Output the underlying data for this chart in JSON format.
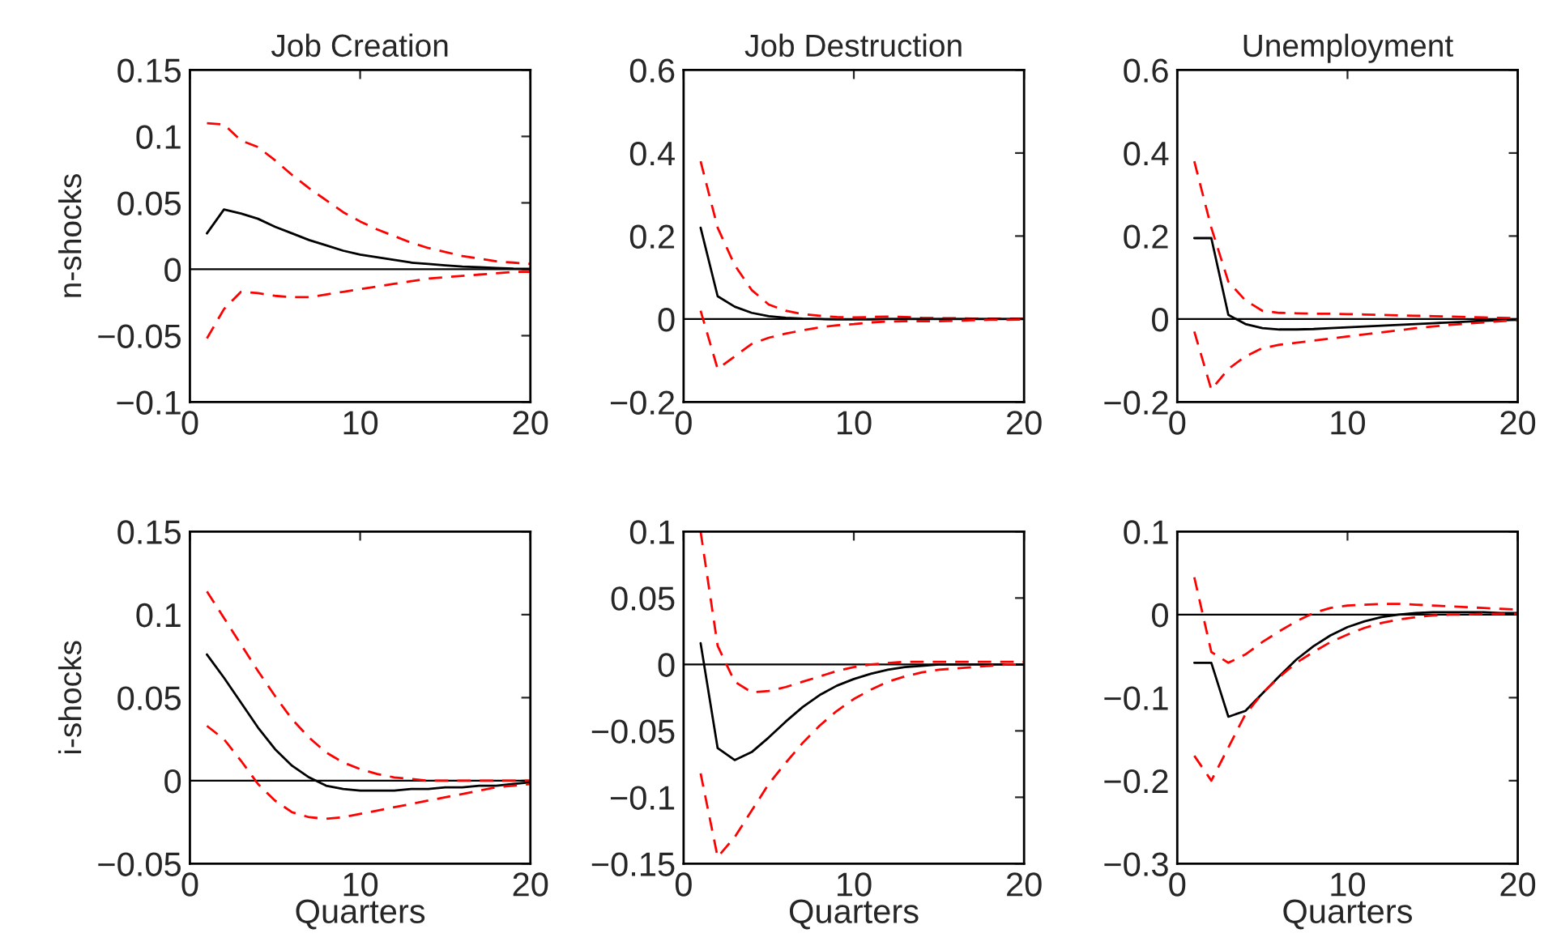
{
  "chart_data": [
    {
      "type": "line",
      "title": "Job Creation",
      "ylabel": "n-shocks",
      "x": [
        1,
        2,
        3,
        4,
        5,
        6,
        7,
        8,
        9,
        10,
        11,
        12,
        13,
        14,
        15,
        16,
        17,
        18,
        19,
        20
      ],
      "xlim": [
        0,
        20
      ],
      "xticks": [
        0,
        10,
        20
      ],
      "ylim": [
        -0.1,
        0.15
      ],
      "yticks": [
        -0.1,
        -0.05,
        0,
        0.05,
        0.1,
        0.15
      ],
      "grid": false,
      "legend": false,
      "ref_lines": [
        {
          "axis": "y",
          "value": 0,
          "color": "#000000"
        }
      ],
      "series": [
        {
          "color": "#ff0000",
          "line_style": "dashed",
          "values": [
            0.11,
            0.109,
            0.097,
            0.092,
            0.082,
            0.071,
            0.061,
            0.052,
            0.043,
            0.036,
            0.03,
            0.025,
            0.02,
            0.016,
            0.013,
            0.01,
            0.008,
            0.006,
            0.005,
            0.004
          ]
        },
        {
          "color": "#000000",
          "line_style": "solid",
          "values": [
            0.027,
            0.045,
            0.042,
            0.038,
            0.032,
            0.027,
            0.022,
            0.018,
            0.014,
            0.011,
            0.009,
            0.007,
            0.005,
            0.004,
            0.003,
            0.002,
            0.0015,
            0.001,
            0.0005,
            0.0003
          ]
        },
        {
          "color": "#ff0000",
          "line_style": "dashed",
          "values": [
            -0.052,
            -0.03,
            -0.017,
            -0.018,
            -0.02,
            -0.021,
            -0.021,
            -0.019,
            -0.017,
            -0.015,
            -0.013,
            -0.011,
            -0.009,
            -0.007,
            -0.006,
            -0.005,
            -0.004,
            -0.003,
            -0.002,
            -0.002
          ]
        }
      ]
    },
    {
      "type": "line",
      "title": "Job Destruction",
      "x": [
        1,
        2,
        3,
        4,
        5,
        6,
        7,
        8,
        9,
        10,
        11,
        12,
        13,
        14,
        15,
        16,
        17,
        18,
        19,
        20
      ],
      "xlim": [
        0,
        20
      ],
      "xticks": [
        0,
        10,
        20
      ],
      "ylim": [
        -0.2,
        0.6
      ],
      "yticks": [
        -0.2,
        0,
        0.2,
        0.4,
        0.6
      ],
      "grid": false,
      "legend": false,
      "ref_lines": [
        {
          "axis": "y",
          "value": 0,
          "color": "#000000"
        }
      ],
      "series": [
        {
          "color": "#ff0000",
          "line_style": "dashed",
          "values": [
            0.38,
            0.22,
            0.13,
            0.07,
            0.035,
            0.02,
            0.012,
            0.008,
            0.005,
            0.004,
            0.005,
            0.006,
            0.005,
            0.003,
            0.002,
            0.002,
            0.001,
            0.001,
            0.001,
            0.001
          ]
        },
        {
          "color": "#000000",
          "line_style": "solid",
          "values": [
            0.22,
            0.055,
            0.03,
            0.015,
            0.007,
            0.003,
            0.001,
            0,
            -0.001,
            -0.001,
            -0.001,
            0,
            0,
            0,
            0,
            0,
            0,
            0,
            0,
            0
          ]
        },
        {
          "color": "#ff0000",
          "line_style": "dashed",
          "values": [
            0.02,
            -0.12,
            -0.09,
            -0.06,
            -0.045,
            -0.035,
            -0.027,
            -0.02,
            -0.015,
            -0.012,
            -0.008,
            -0.006,
            -0.005,
            -0.005,
            -0.005,
            -0.004,
            -0.003,
            -0.002,
            -0.002,
            -0.001
          ]
        }
      ]
    },
    {
      "type": "line",
      "title": "Unemployment",
      "x": [
        1,
        2,
        3,
        4,
        5,
        6,
        7,
        8,
        9,
        10,
        11,
        12,
        13,
        14,
        15,
        16,
        17,
        18,
        19,
        20
      ],
      "xlim": [
        0,
        20
      ],
      "xticks": [
        0,
        10,
        20
      ],
      "ylim": [
        -0.2,
        0.6
      ],
      "yticks": [
        -0.2,
        0,
        0.2,
        0.4,
        0.6
      ],
      "grid": false,
      "legend": false,
      "ref_lines": [
        {
          "axis": "y",
          "value": 0,
          "color": "#000000"
        }
      ],
      "series": [
        {
          "color": "#ff0000",
          "line_style": "dashed",
          "values": [
            0.38,
            0.22,
            0.09,
            0.045,
            0.02,
            0.015,
            0.014,
            0.013,
            0.013,
            0.012,
            0.011,
            0.01,
            0.009,
            0.008,
            0.007,
            0.006,
            0.005,
            0.004,
            0.003,
            0.002
          ]
        },
        {
          "color": "#000000",
          "line_style": "solid",
          "values": [
            0.195,
            0.195,
            0.01,
            -0.012,
            -0.022,
            -0.025,
            -0.025,
            -0.024,
            -0.022,
            -0.02,
            -0.018,
            -0.016,
            -0.014,
            -0.012,
            -0.01,
            -0.008,
            -0.006,
            -0.004,
            -0.003,
            -0.002
          ]
        },
        {
          "color": "#ff0000",
          "line_style": "dashed",
          "values": [
            -0.03,
            -0.17,
            -0.12,
            -0.09,
            -0.07,
            -0.062,
            -0.057,
            -0.052,
            -0.047,
            -0.042,
            -0.037,
            -0.032,
            -0.027,
            -0.022,
            -0.018,
            -0.014,
            -0.011,
            -0.008,
            -0.005,
            -0.003
          ]
        }
      ]
    },
    {
      "type": "line",
      "ylabel": "i-shocks",
      "xlabel": "Quarters",
      "x": [
        1,
        2,
        3,
        4,
        5,
        6,
        7,
        8,
        9,
        10,
        11,
        12,
        13,
        14,
        15,
        16,
        17,
        18,
        19,
        20
      ],
      "xlim": [
        0,
        20
      ],
      "xticks": [
        0,
        10,
        20
      ],
      "ylim": [
        -0.05,
        0.15
      ],
      "yticks": [
        -0.05,
        0,
        0.05,
        0.1,
        0.15
      ],
      "grid": false,
      "legend": false,
      "ref_lines": [
        {
          "axis": "y",
          "value": 0,
          "color": "#000000"
        }
      ],
      "series": [
        {
          "color": "#ff0000",
          "line_style": "dashed",
          "values": [
            0.114,
            0.098,
            0.082,
            0.066,
            0.051,
            0.037,
            0.026,
            0.017,
            0.011,
            0.007,
            0.004,
            0.002,
            0.001,
            0,
            0,
            0,
            0,
            0,
            0,
            0
          ]
        },
        {
          "color": "#000000",
          "line_style": "solid",
          "values": [
            0.076,
            0.062,
            0.047,
            0.032,
            0.019,
            0.009,
            0.002,
            -0.003,
            -0.005,
            -0.006,
            -0.006,
            -0.006,
            -0.005,
            -0.005,
            -0.004,
            -0.004,
            -0.003,
            -0.003,
            -0.002,
            -0.001
          ]
        },
        {
          "color": "#ff0000",
          "line_style": "dashed",
          "values": [
            0.033,
            0.025,
            0.012,
            -0.002,
            -0.012,
            -0.019,
            -0.022,
            -0.023,
            -0.022,
            -0.02,
            -0.018,
            -0.016,
            -0.014,
            -0.012,
            -0.01,
            -0.008,
            -0.006,
            -0.004,
            -0.003,
            -0.002
          ]
        }
      ]
    },
    {
      "type": "line",
      "xlabel": "Quarters",
      "x": [
        1,
        2,
        3,
        4,
        5,
        6,
        7,
        8,
        9,
        10,
        11,
        12,
        13,
        14,
        15,
        16,
        17,
        18,
        19,
        20
      ],
      "xlim": [
        0,
        20
      ],
      "xticks": [
        0,
        10,
        20
      ],
      "ylim": [
        -0.15,
        0.1
      ],
      "yticks": [
        -0.15,
        -0.1,
        -0.05,
        0,
        0.05,
        0.1
      ],
      "grid": false,
      "legend": false,
      "ref_lines": [
        {
          "axis": "y",
          "value": 0,
          "color": "#000000"
        }
      ],
      "series": [
        {
          "color": "#ff0000",
          "line_style": "dashed",
          "values": [
            0.1,
            0.014,
            -0.013,
            -0.021,
            -0.02,
            -0.017,
            -0.013,
            -0.009,
            -0.005,
            -0.002,
            0,
            0.001,
            0.002,
            0.002,
            0.002,
            0.002,
            0.002,
            0.002,
            0.002,
            0.002
          ]
        },
        {
          "color": "#000000",
          "line_style": "solid",
          "values": [
            0.016,
            -0.063,
            -0.072,
            -0.066,
            -0.055,
            -0.043,
            -0.032,
            -0.023,
            -0.016,
            -0.011,
            -0.007,
            -0.004,
            -0.002,
            -0.001,
            0,
            0,
            0,
            0,
            0,
            0
          ]
        },
        {
          "color": "#ff0000",
          "line_style": "dashed",
          "values": [
            -0.082,
            -0.145,
            -0.13,
            -0.11,
            -0.09,
            -0.074,
            -0.059,
            -0.046,
            -0.035,
            -0.026,
            -0.019,
            -0.013,
            -0.009,
            -0.006,
            -0.004,
            -0.003,
            -0.002,
            -0.001,
            0,
            0
          ]
        }
      ]
    },
    {
      "type": "line",
      "xlabel": "Quarters",
      "x": [
        1,
        2,
        3,
        4,
        5,
        6,
        7,
        8,
        9,
        10,
        11,
        12,
        13,
        14,
        15,
        16,
        17,
        18,
        19,
        20
      ],
      "xlim": [
        0,
        20
      ],
      "xticks": [
        0,
        10,
        20
      ],
      "ylim": [
        -0.3,
        0.1
      ],
      "yticks": [
        -0.3,
        -0.2,
        -0.1,
        0,
        0.1
      ],
      "grid": false,
      "legend": false,
      "ref_lines": [
        {
          "axis": "y",
          "value": 0,
          "color": "#000000"
        }
      ],
      "series": [
        {
          "color": "#ff0000",
          "line_style": "dashed",
          "values": [
            0.045,
            -0.045,
            -0.058,
            -0.048,
            -0.033,
            -0.02,
            -0.008,
            0.002,
            0.008,
            0.011,
            0.012,
            0.013,
            0.013,
            0.012,
            0.011,
            0.01,
            0.009,
            0.008,
            0.007,
            0.006
          ]
        },
        {
          "color": "#000000",
          "line_style": "solid",
          "values": [
            -0.058,
            -0.058,
            -0.123,
            -0.116,
            -0.095,
            -0.074,
            -0.054,
            -0.038,
            -0.025,
            -0.015,
            -0.008,
            -0.003,
            0,
            0.002,
            0.003,
            0.003,
            0.003,
            0.003,
            0.002,
            0.002
          ]
        },
        {
          "color": "#ff0000",
          "line_style": "dashed",
          "values": [
            -0.17,
            -0.2,
            -0.16,
            -0.12,
            -0.095,
            -0.075,
            -0.058,
            -0.045,
            -0.033,
            -0.024,
            -0.016,
            -0.01,
            -0.006,
            -0.003,
            -0.001,
            0,
            0,
            0.001,
            0.001,
            0.001
          ]
        }
      ]
    }
  ]
}
